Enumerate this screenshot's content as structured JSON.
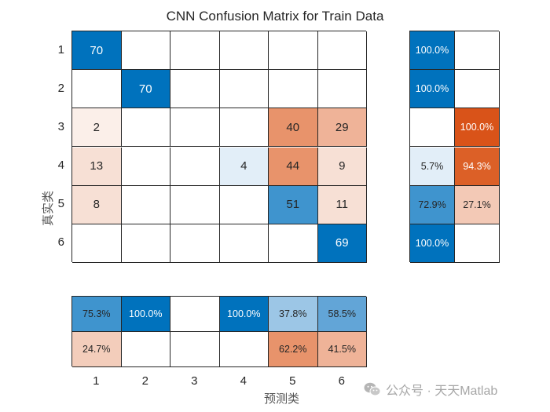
{
  "chart": {
    "title": "CNN Confusion Matrix for Train Data",
    "ylabel": "真实类",
    "xlabel": "预测类",
    "row_ticks": [
      "1",
      "2",
      "3",
      "4",
      "5",
      "6"
    ],
    "col_ticks": [
      "1",
      "2",
      "3",
      "4",
      "5",
      "6"
    ]
  },
  "watermark": {
    "text": "公众号 · 天天Matlab"
  },
  "chart_data": {
    "type": "heatmap",
    "title": "CNN Confusion Matrix for Train Data",
    "xlabel": "预测类",
    "ylabel": "真实类",
    "classes": [
      "1",
      "2",
      "3",
      "4",
      "5",
      "6"
    ],
    "matrix": [
      [
        70,
        0,
        0,
        0,
        0,
        0
      ],
      [
        0,
        70,
        0,
        0,
        0,
        0
      ],
      [
        2,
        0,
        0,
        0,
        40,
        29
      ],
      [
        13,
        0,
        0,
        4,
        44,
        9
      ],
      [
        8,
        0,
        0,
        0,
        51,
        11
      ],
      [
        0,
        0,
        0,
        0,
        0,
        69
      ]
    ],
    "row_summary": {
      "correct": [
        "100.0%",
        "100.0%",
        "",
        "5.7%",
        "72.9%",
        "100.0%"
      ],
      "incorrect": [
        "",
        "",
        "100.0%",
        "94.3%",
        "27.1%",
        ""
      ]
    },
    "column_summary": {
      "correct": [
        "75.3%",
        "100.0%",
        "",
        "100.0%",
        "37.8%",
        "58.5%"
      ],
      "incorrect": [
        "24.7%",
        "",
        "",
        "",
        "62.2%",
        "41.5%"
      ]
    },
    "colors": {
      "diag_strong": "#0072bd",
      "diag_mid": "#3f94ce",
      "diag_light": "#e2eef8",
      "off_strong": "#e8936b",
      "off_mid": "#efb398",
      "off_light": "#f7e0d5",
      "off_faint": "#fbefe9",
      "row_err_strong": "#d95319",
      "row_err_mid": "#dc6027"
    }
  }
}
